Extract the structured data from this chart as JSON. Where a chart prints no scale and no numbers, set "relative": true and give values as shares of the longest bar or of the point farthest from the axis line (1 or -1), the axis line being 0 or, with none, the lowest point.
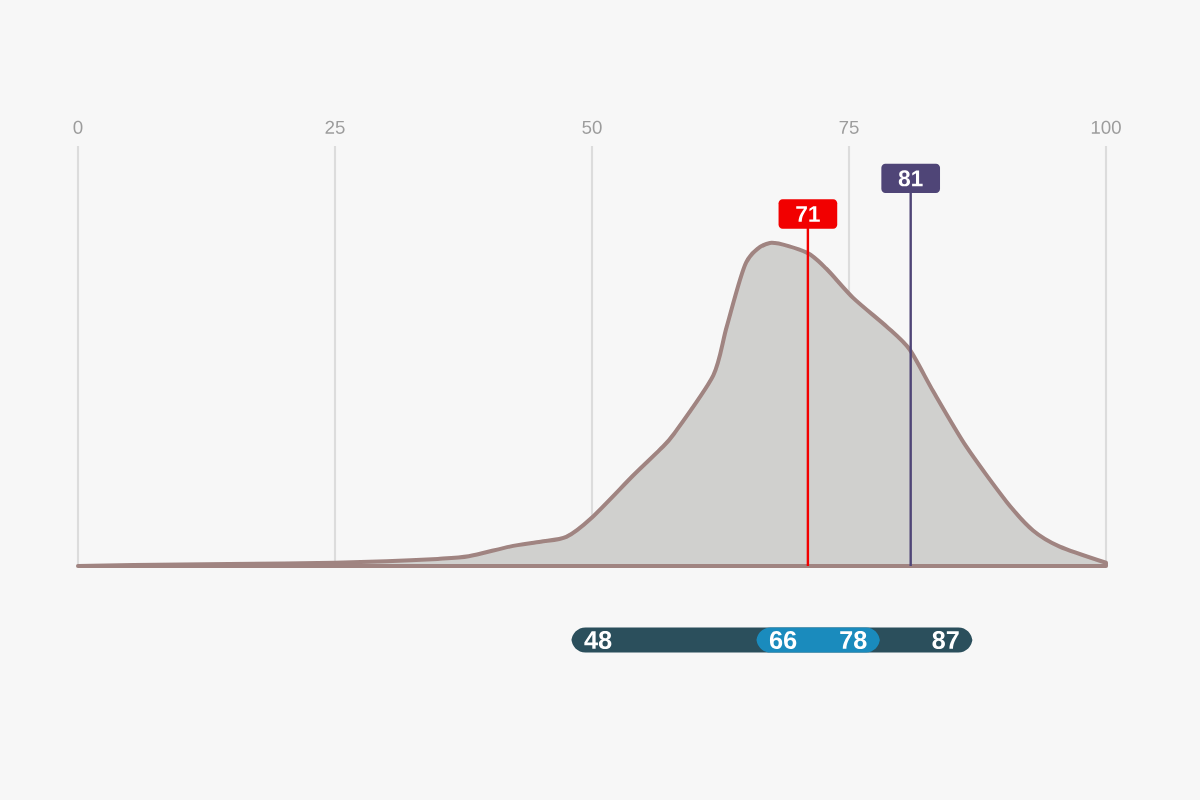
{
  "chart_data": [
    {
      "type": "area",
      "relative": true,
      "color": "#d0d0ce",
      "x": [
        0,
        10,
        20,
        25,
        30,
        35,
        38,
        42,
        45,
        47.5,
        50,
        54,
        56.6,
        58,
        61.8,
        63.1,
        65,
        67.3,
        70.9,
        72.8,
        75.4,
        78.7,
        80.9,
        83.2,
        86.4,
        90.3,
        92.9,
        95.5,
        100
      ],
      "values": [
        0.0,
        0.005,
        0.008,
        0.01,
        0.015,
        0.022,
        0.03,
        0.06,
        0.075,
        0.09,
        0.15,
        0.28,
        0.36,
        0.41,
        0.59,
        0.74,
        0.94,
        1.0,
        0.97,
        0.92,
        0.83,
        0.74,
        0.67,
        0.54,
        0.37,
        0.2,
        0.11,
        0.06,
        0.01
      ],
      "xlim": [
        0,
        100
      ],
      "xticks": [
        0,
        25,
        50,
        75,
        100
      ],
      "grid": "x",
      "ref_lines": [
        {
          "axis": "x",
          "value": 71,
          "label": "71",
          "color": "#f20000"
        },
        {
          "axis": "x",
          "value": 81,
          "label": "81",
          "color": "#4f4577"
        }
      ]
    },
    {
      "type": "bar",
      "orientation": "horizontal",
      "categories": [
        null
      ],
      "series": [
        {
          "color": "#2b4f5c",
          "base": [
            48
          ],
          "values": [
            39
          ]
        },
        {
          "color": "#1a8bbd",
          "base": [
            66
          ],
          "values": [
            12
          ]
        }
      ],
      "xlim": [
        0,
        100
      ],
      "tick_labels": false,
      "annotations": [
        {
          "text": "48",
          "x": 48
        },
        {
          "text": "66",
          "x": 66
        },
        {
          "text": "78",
          "x": 78
        },
        {
          "text": "87",
          "x": 87
        }
      ]
    }
  ]
}
